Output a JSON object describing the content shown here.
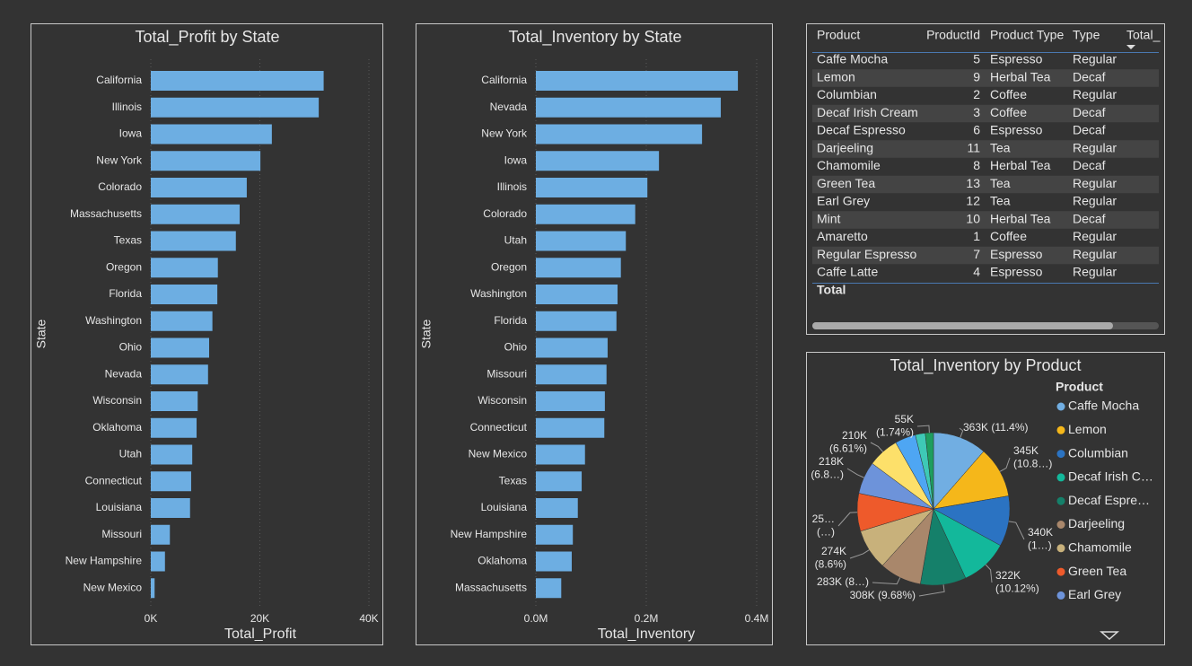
{
  "chart_data": [
    {
      "type": "bar",
      "orientation": "horizontal",
      "title": "Total_Profit by State",
      "x_label": "Total_Profit",
      "y_label": "State",
      "categories": [
        "California",
        "Illinois",
        "Iowa",
        "New York",
        "Colorado",
        "Massachusetts",
        "Texas",
        "Oregon",
        "Florida",
        "Washington",
        "Ohio",
        "Nevada",
        "Wisconsin",
        "Oklahoma",
        "Utah",
        "Connecticut",
        "Louisiana",
        "Missouri",
        "New Hampshire",
        "New Mexico"
      ],
      "values": [
        31700,
        30800,
        22200,
        20100,
        17600,
        16300,
        15600,
        12300,
        12200,
        11300,
        10700,
        10500,
        8600,
        8400,
        7600,
        7400,
        7200,
        3500,
        2600,
        700
      ],
      "color": "#6daee2",
      "xlim": [
        0,
        40000
      ],
      "xticks": [
        {
          "value": 0,
          "label": "0K"
        },
        {
          "value": 20000,
          "label": "20K"
        },
        {
          "value": 40000,
          "label": "40K"
        }
      ],
      "grid": true
    },
    {
      "type": "bar",
      "orientation": "horizontal",
      "title": "Total_Inventory by State",
      "x_label": "Total_Inventory",
      "y_label": "State",
      "categories": [
        "California",
        "Nevada",
        "New York",
        "Iowa",
        "Illinois",
        "Colorado",
        "Utah",
        "Oregon",
        "Washington",
        "Florida",
        "Ohio",
        "Missouri",
        "Wisconsin",
        "Connecticut",
        "New Mexico",
        "Texas",
        "Louisiana",
        "New Hampshire",
        "Oklahoma",
        "Massachusetts"
      ],
      "values": [
        366000,
        335000,
        301000,
        223000,
        202000,
        180000,
        163000,
        154000,
        148000,
        146000,
        130000,
        128000,
        125000,
        124000,
        89000,
        83000,
        76000,
        67000,
        65000,
        46000
      ],
      "color": "#6daee2",
      "xlim": [
        0,
        400000
      ],
      "xticks": [
        {
          "value": 0,
          "label": "0.0M"
        },
        {
          "value": 200000,
          "label": "0.2M"
        },
        {
          "value": 400000,
          "label": "0.4M"
        }
      ],
      "grid": true
    },
    {
      "type": "pie",
      "title": "Total_Inventory by Product",
      "legend_title": "Product",
      "categories": [
        "Caffe Mocha",
        "Lemon",
        "Columbian",
        "Decaf Irish C…",
        "Decaf Espre…",
        "Darjeeling",
        "Chamomile",
        "Green Tea",
        "Earl Grey",
        null,
        null,
        null,
        null
      ],
      "values": [
        363000,
        345000,
        340000,
        322000,
        308000,
        283000,
        274000,
        255000,
        218000,
        210000,
        140000,
        67000,
        55000
      ],
      "value_labels": [
        [
          "363K (11.4%)"
        ],
        [
          "345K",
          "(10.8…)"
        ],
        [
          "340K",
          "(1…)"
        ],
        [
          "322K",
          "(10.12%)"
        ],
        [
          "308K (9.68%)"
        ],
        [
          "283K (8…)"
        ],
        [
          "274K",
          "(8.6%)"
        ],
        [
          "25…",
          "(…)"
        ],
        [
          "218K",
          "(6.8…)"
        ],
        [
          "210K",
          "(6.61%)"
        ],
        null,
        null,
        [
          "55K",
          "(1.74%)"
        ]
      ],
      "colors": [
        "#71aee2",
        "#f5b71a",
        "#2b73c2",
        "#13b89b",
        "#15806a",
        "#a9876b",
        "#c8b17b",
        "#ee5a2b",
        "#6d93da",
        "#fde06a",
        "#4ea6f3",
        "#3ec9b6",
        "#1e9e5f"
      ]
    }
  ],
  "table": {
    "columns": [
      "Product",
      "ProductId",
      "Product Type",
      "Type",
      "Total_"
    ],
    "rows": [
      [
        "Caffe Mocha",
        5,
        "Espresso",
        "Regular"
      ],
      [
        "Lemon",
        9,
        "Herbal Tea",
        "Decaf"
      ],
      [
        "Columbian",
        2,
        "Coffee",
        "Regular"
      ],
      [
        "Decaf Irish Cream",
        3,
        "Coffee",
        "Decaf"
      ],
      [
        "Decaf Espresso",
        6,
        "Espresso",
        "Decaf"
      ],
      [
        "Darjeeling",
        11,
        "Tea",
        "Regular"
      ],
      [
        "Chamomile",
        8,
        "Herbal Tea",
        "Decaf"
      ],
      [
        "Green Tea",
        13,
        "Tea",
        "Regular"
      ],
      [
        "Earl Grey",
        12,
        "Tea",
        "Regular"
      ],
      [
        "Mint",
        10,
        "Herbal Tea",
        "Decaf"
      ],
      [
        "Amaretto",
        1,
        "Coffee",
        "Regular"
      ],
      [
        "Regular Espresso",
        7,
        "Espresso",
        "Regular"
      ],
      [
        "Caffe Latte",
        4,
        "Espresso",
        "Regular"
      ]
    ],
    "total_label": "Total"
  }
}
